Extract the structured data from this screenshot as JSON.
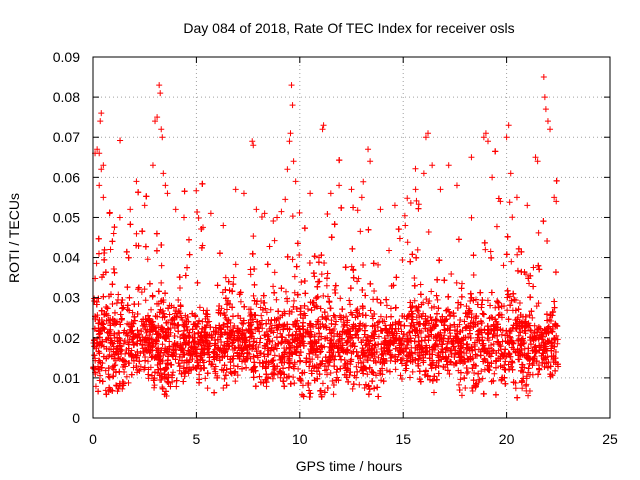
{
  "chart_data": {
    "type": "scatter",
    "title": "Day 084 of 2018, Rate Of TEC Index for receiver osls",
    "xlabel": "GPS time / hours",
    "ylabel": "ROTI / TECUs",
    "xlim": [
      0,
      25
    ],
    "ylim": [
      0,
      0.09
    ],
    "xticks": [
      0,
      5,
      10,
      15,
      20,
      25
    ],
    "xtick_labels": [
      "0",
      "5",
      "10",
      "15",
      "20",
      "25"
    ],
    "yticks": [
      0,
      0.01,
      0.02,
      0.03,
      0.04,
      0.05,
      0.06,
      0.07,
      0.08,
      0.09
    ],
    "ytick_labels": [
      "0",
      "0.01",
      "0.02",
      "0.03",
      "0.04",
      "0.05",
      "0.06",
      "0.07",
      "0.08",
      "0.09"
    ],
    "grid": true,
    "marker": "+",
    "color": "#ff0000",
    "data_x_range": [
      0,
      22.5
    ],
    "density_note": "dense cloud of points mostly between 0.008 and 0.03 TECUs with scattered spikes",
    "series": [
      {
        "name": "osls",
        "points": [
          [
            0.1,
            0.066
          ],
          [
            0.2,
            0.067
          ],
          [
            0.3,
            0.066
          ],
          [
            0.4,
            0.062
          ],
          [
            0.35,
            0.074
          ],
          [
            0.4,
            0.076
          ],
          [
            0.5,
            0.063
          ],
          [
            0.3,
            0.058
          ],
          [
            0.5,
            0.055
          ],
          [
            0.8,
            0.051
          ],
          [
            1.0,
            0.046
          ],
          [
            1.3,
            0.05
          ],
          [
            1.8,
            0.052
          ],
          [
            2.1,
            0.059
          ],
          [
            2.5,
            0.053
          ],
          [
            2.9,
            0.063
          ],
          [
            3.0,
            0.074
          ],
          [
            3.1,
            0.075
          ],
          [
            3.2,
            0.083
          ],
          [
            3.25,
            0.081
          ],
          [
            3.3,
            0.072
          ],
          [
            3.35,
            0.07
          ],
          [
            3.4,
            0.061
          ],
          [
            3.5,
            0.058
          ],
          [
            3.6,
            0.056
          ],
          [
            4.0,
            0.052
          ],
          [
            4.4,
            0.05
          ],
          [
            5.3,
            0.043
          ],
          [
            5.7,
            0.051
          ],
          [
            6.3,
            0.048
          ],
          [
            6.9,
            0.057
          ],
          [
            7.3,
            0.056
          ],
          [
            7.7,
            0.069
          ],
          [
            7.75,
            0.068
          ],
          [
            7.9,
            0.052
          ],
          [
            8.3,
            0.051
          ],
          [
            8.9,
            0.05
          ],
          [
            9.4,
            0.062
          ],
          [
            9.5,
            0.069
          ],
          [
            9.55,
            0.071
          ],
          [
            9.6,
            0.083
          ],
          [
            9.65,
            0.078
          ],
          [
            9.7,
            0.064
          ],
          [
            9.8,
            0.059
          ],
          [
            10.5,
            0.056
          ],
          [
            11.1,
            0.072
          ],
          [
            11.15,
            0.073
          ],
          [
            11.5,
            0.056
          ],
          [
            11.9,
            0.058
          ],
          [
            12.5,
            0.057
          ],
          [
            13.0,
            0.055
          ],
          [
            13.3,
            0.067
          ],
          [
            13.4,
            0.064
          ],
          [
            13.9,
            0.052
          ],
          [
            14.6,
            0.053
          ],
          [
            15.1,
            0.048
          ],
          [
            15.6,
            0.057
          ],
          [
            16.0,
            0.061
          ],
          [
            16.1,
            0.07
          ],
          [
            16.2,
            0.071
          ],
          [
            16.4,
            0.063
          ],
          [
            16.8,
            0.057
          ],
          [
            17.2,
            0.063
          ],
          [
            17.6,
            0.058
          ],
          [
            18.3,
            0.065
          ],
          [
            18.9,
            0.07
          ],
          [
            19.0,
            0.071
          ],
          [
            19.1,
            0.069
          ],
          [
            19.3,
            0.06
          ],
          [
            19.7,
            0.054
          ],
          [
            20.0,
            0.07
          ],
          [
            20.1,
            0.073
          ],
          [
            20.2,
            0.061
          ],
          [
            20.5,
            0.055
          ],
          [
            21.0,
            0.053
          ],
          [
            21.4,
            0.065
          ],
          [
            21.5,
            0.064
          ],
          [
            21.8,
            0.085
          ],
          [
            21.85,
            0.08
          ],
          [
            21.9,
            0.077
          ],
          [
            22.0,
            0.074
          ],
          [
            22.1,
            0.072
          ],
          [
            22.3,
            0.055
          ],
          [
            22.4,
            0.054
          ]
        ]
      }
    ]
  }
}
